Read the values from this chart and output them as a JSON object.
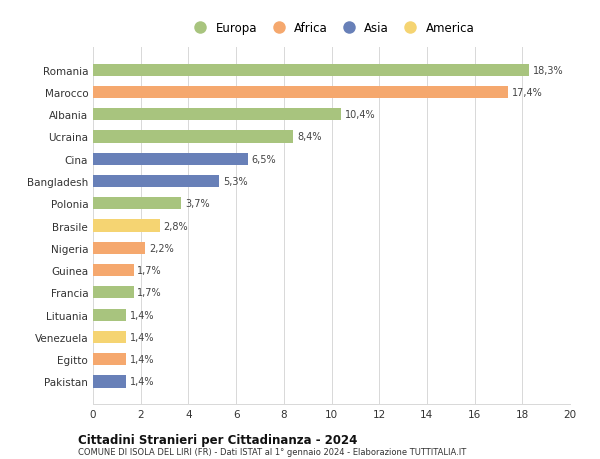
{
  "categories": [
    "Romania",
    "Marocco",
    "Albania",
    "Ucraina",
    "Cina",
    "Bangladesh",
    "Polonia",
    "Brasile",
    "Nigeria",
    "Guinea",
    "Francia",
    "Lituania",
    "Venezuela",
    "Egitto",
    "Pakistan"
  ],
  "values": [
    18.3,
    17.4,
    10.4,
    8.4,
    6.5,
    5.3,
    3.7,
    2.8,
    2.2,
    1.7,
    1.7,
    1.4,
    1.4,
    1.4,
    1.4
  ],
  "labels": [
    "18,3%",
    "17,4%",
    "10,4%",
    "8,4%",
    "6,5%",
    "5,3%",
    "3,7%",
    "2,8%",
    "2,2%",
    "1,7%",
    "1,7%",
    "1,4%",
    "1,4%",
    "1,4%",
    "1,4%"
  ],
  "colors": [
    "#a8c47e",
    "#f5a86e",
    "#a8c47e",
    "#a8c47e",
    "#6880b8",
    "#6880b8",
    "#a8c47e",
    "#f5d472",
    "#f5a86e",
    "#f5a86e",
    "#a8c47e",
    "#a8c47e",
    "#f5d472",
    "#f5a86e",
    "#6880b8"
  ],
  "legend": {
    "Europa": "#a8c47e",
    "Africa": "#f5a86e",
    "Asia": "#6880b8",
    "America": "#f5d472"
  },
  "title": "Cittadini Stranieri per Cittadinanza - 2024",
  "subtitle": "COMUNE DI ISOLA DEL LIRI (FR) - Dati ISTAT al 1° gennaio 2024 - Elaborazione TUTTITALIA.IT",
  "xlim": [
    0,
    20
  ],
  "xticks": [
    0,
    2,
    4,
    6,
    8,
    10,
    12,
    14,
    16,
    18,
    20
  ],
  "background_color": "#ffffff",
  "grid_color": "#d8d8d8"
}
